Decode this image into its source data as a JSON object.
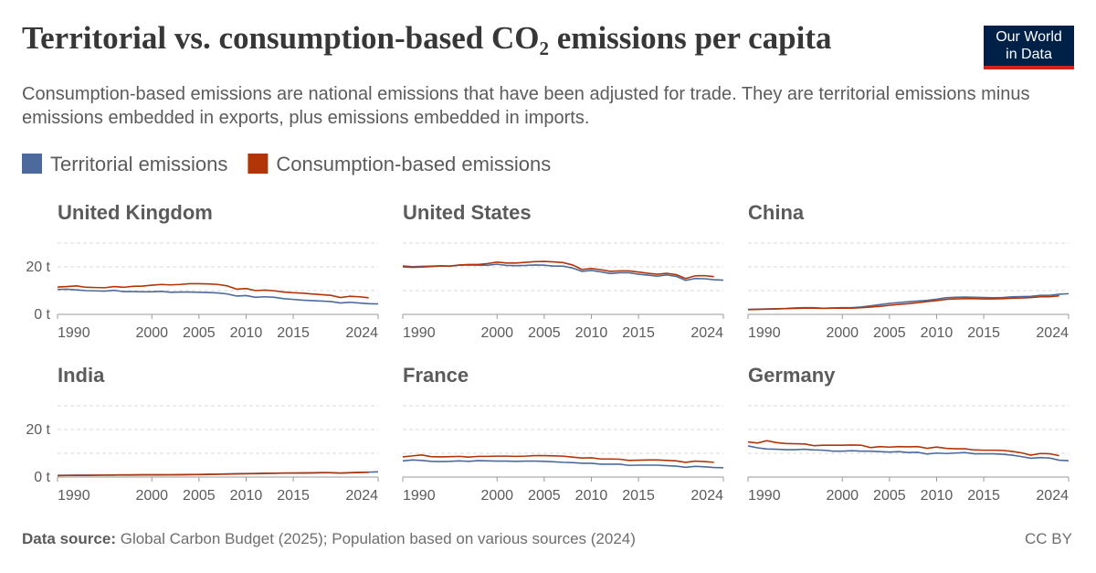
{
  "title": "Territorial vs. consumption-based CO₂ emissions per capita",
  "subtitle": "Consumption-based emissions are national emissions that have been adjusted for trade. They are territorial emissions minus emissions embedded in exports, plus emissions embedded in imports.",
  "logo": {
    "line1": "Our World",
    "line2": "in Data"
  },
  "source_label": "Data source:",
  "source": "Global Carbon Budget (2025); Population based on various sources (2024)",
  "license": "CC BY",
  "chart_data": [
    {
      "type": "line",
      "title": "United Kingdom",
      "x": [
        1990,
        1991,
        1992,
        1993,
        1994,
        1995,
        1996,
        1997,
        1998,
        1999,
        2000,
        2001,
        2002,
        2003,
        2004,
        2005,
        2006,
        2007,
        2008,
        2009,
        2010,
        2011,
        2012,
        2013,
        2014,
        2015,
        2016,
        2017,
        2018,
        2019,
        2020,
        2021,
        2022,
        2023,
        2024
      ],
      "xlim": [
        1990,
        2024
      ],
      "xticks": [
        1990,
        2000,
        2005,
        2010,
        2015,
        2024
      ],
      "ylim": [
        0,
        30
      ],
      "yticks": [
        {
          "value": 0,
          "label": "0 t"
        },
        {
          "value": 20,
          "label": "20 t"
        }
      ],
      "ygrid": [
        10,
        20,
        30
      ],
      "series": [
        {
          "name": "Territorial emissions",
          "color": "#4c6a9c",
          "values": [
            10.5,
            10.6,
            10.3,
            10.0,
            9.9,
            9.8,
            10.1,
            9.6,
            9.6,
            9.5,
            9.5,
            9.7,
            9.3,
            9.4,
            9.4,
            9.3,
            9.2,
            9.0,
            8.6,
            7.7,
            7.9,
            7.2,
            7.4,
            7.2,
            6.6,
            6.3,
            6.0,
            5.8,
            5.6,
            5.4,
            4.8,
            5.1,
            4.8,
            4.5,
            4.4
          ]
        },
        {
          "name": "Consumption-based emissions",
          "color": "#b13507",
          "values": [
            11.5,
            11.7,
            12.0,
            11.4,
            11.3,
            11.2,
            11.7,
            11.4,
            11.8,
            11.9,
            12.3,
            12.6,
            12.4,
            12.6,
            12.9,
            12.9,
            12.8,
            12.6,
            12.0,
            10.6,
            10.9,
            10.0,
            10.2,
            9.9,
            9.4,
            9.1,
            8.9,
            8.6,
            8.3,
            8.0,
            7.1,
            7.6,
            7.4,
            7.0,
            null
          ]
        }
      ]
    },
    {
      "type": "line",
      "title": "United States",
      "x": [
        1990,
        1991,
        1992,
        1993,
        1994,
        1995,
        1996,
        1997,
        1998,
        1999,
        2000,
        2001,
        2002,
        2003,
        2004,
        2005,
        2006,
        2007,
        2008,
        2009,
        2010,
        2011,
        2012,
        2013,
        2014,
        2015,
        2016,
        2017,
        2018,
        2019,
        2020,
        2021,
        2022,
        2023,
        2024
      ],
      "xlim": [
        1990,
        2024
      ],
      "xticks": [
        1990,
        2000,
        2005,
        2010,
        2015,
        2024
      ],
      "ylim": [
        0,
        30
      ],
      "ygrid": [
        10,
        20,
        30
      ],
      "series": [
        {
          "name": "Territorial emissions",
          "color": "#4c6a9c",
          "values": [
            20.4,
            20.1,
            20.2,
            20.3,
            20.4,
            20.3,
            20.7,
            20.8,
            20.7,
            20.7,
            21.1,
            20.6,
            20.5,
            20.6,
            20.8,
            20.7,
            20.3,
            20.3,
            19.5,
            18.1,
            18.5,
            17.9,
            17.2,
            17.5,
            17.5,
            16.9,
            16.5,
            16.1,
            16.6,
            16.0,
            14.3,
            15.1,
            15.0,
            14.6,
            14.4
          ]
        },
        {
          "name": "Consumption-based emissions",
          "color": "#b13507",
          "values": [
            20.0,
            19.8,
            19.9,
            20.1,
            20.4,
            20.3,
            20.8,
            21.0,
            21.0,
            21.4,
            22.0,
            21.6,
            21.6,
            21.9,
            22.2,
            22.3,
            22.1,
            21.8,
            20.8,
            18.9,
            19.3,
            18.8,
            18.1,
            18.3,
            18.3,
            17.8,
            17.3,
            16.9,
            17.3,
            16.7,
            15.1,
            16.2,
            16.3,
            15.9,
            null
          ]
        }
      ]
    },
    {
      "type": "line",
      "title": "China",
      "x": [
        1990,
        1991,
        1992,
        1993,
        1994,
        1995,
        1996,
        1997,
        1998,
        1999,
        2000,
        2001,
        2002,
        2003,
        2004,
        2005,
        2006,
        2007,
        2008,
        2009,
        2010,
        2011,
        2012,
        2013,
        2014,
        2015,
        2016,
        2017,
        2018,
        2019,
        2020,
        2021,
        2022,
        2023,
        2024
      ],
      "xlim": [
        1990,
        2024
      ],
      "xticks": [
        1990,
        2000,
        2005,
        2010,
        2015,
        2024
      ],
      "ylim": [
        0,
        30
      ],
      "ygrid": [
        10,
        20,
        30
      ],
      "series": [
        {
          "name": "Territorial emissions",
          "color": "#4c6a9c",
          "values": [
            2.1,
            2.2,
            2.3,
            2.4,
            2.5,
            2.7,
            2.8,
            2.8,
            2.6,
            2.7,
            2.8,
            2.8,
            3.1,
            3.6,
            4.1,
            4.6,
            5.0,
            5.3,
            5.6,
            5.9,
            6.4,
            7.0,
            7.2,
            7.3,
            7.2,
            7.1,
            7.0,
            7.1,
            7.4,
            7.5,
            7.6,
            8.0,
            8.0,
            8.5,
            8.7
          ]
        },
        {
          "name": "Consumption-based emissions",
          "color": "#b13507",
          "values": [
            2.0,
            2.1,
            2.2,
            2.3,
            2.4,
            2.5,
            2.6,
            2.6,
            2.5,
            2.6,
            2.6,
            2.6,
            2.8,
            3.1,
            3.4,
            3.8,
            4.2,
            4.5,
            4.9,
            5.4,
            5.8,
            6.3,
            6.5,
            6.6,
            6.6,
            6.5,
            6.5,
            6.6,
            6.8,
            6.9,
            7.1,
            7.4,
            7.4,
            7.8,
            null
          ]
        }
      ]
    },
    {
      "type": "line",
      "title": "India",
      "x": [
        1990,
        1991,
        1992,
        1993,
        1994,
        1995,
        1996,
        1997,
        1998,
        1999,
        2000,
        2001,
        2002,
        2003,
        2004,
        2005,
        2006,
        2007,
        2008,
        2009,
        2010,
        2011,
        2012,
        2013,
        2014,
        2015,
        2016,
        2017,
        2018,
        2019,
        2020,
        2021,
        2022,
        2023,
        2024
      ],
      "xlim": [
        1990,
        2024
      ],
      "xticks": [
        1990,
        2000,
        2005,
        2010,
        2015,
        2024
      ],
      "ylim": [
        0,
        30
      ],
      "yticks": [
        {
          "value": 0,
          "label": "0 t"
        },
        {
          "value": 20,
          "label": "20 t"
        }
      ],
      "ygrid": [
        10,
        20,
        30
      ],
      "series": [
        {
          "name": "Territorial emissions",
          "color": "#4c6a9c",
          "values": [
            0.7,
            0.75,
            0.78,
            0.79,
            0.82,
            0.86,
            0.89,
            0.92,
            0.93,
            0.97,
            0.98,
            0.98,
            0.99,
            1.02,
            1.07,
            1.1,
            1.16,
            1.23,
            1.31,
            1.41,
            1.45,
            1.51,
            1.6,
            1.63,
            1.72,
            1.73,
            1.75,
            1.8,
            1.88,
            1.87,
            1.72,
            1.87,
            1.98,
            2.07,
            2.2
          ]
        },
        {
          "name": "Consumption-based emissions",
          "color": "#b13507",
          "values": [
            0.62,
            0.67,
            0.7,
            0.71,
            0.74,
            0.78,
            0.81,
            0.84,
            0.85,
            0.89,
            0.9,
            0.9,
            0.91,
            0.94,
            0.99,
            1.02,
            1.08,
            1.15,
            1.23,
            1.33,
            1.37,
            1.43,
            1.52,
            1.55,
            1.64,
            1.65,
            1.67,
            1.72,
            1.8,
            1.79,
            1.64,
            1.79,
            1.9,
            1.99,
            null
          ]
        }
      ]
    },
    {
      "type": "line",
      "title": "France",
      "x": [
        1990,
        1991,
        1992,
        1993,
        1994,
        1995,
        1996,
        1997,
        1998,
        1999,
        2000,
        2001,
        2002,
        2003,
        2004,
        2005,
        2006,
        2007,
        2008,
        2009,
        2010,
        2011,
        2012,
        2013,
        2014,
        2015,
        2016,
        2017,
        2018,
        2019,
        2020,
        2021,
        2022,
        2023,
        2024
      ],
      "xlim": [
        1990,
        2024
      ],
      "xticks": [
        1990,
        2000,
        2005,
        2010,
        2015,
        2024
      ],
      "ylim": [
        0,
        30
      ],
      "ygrid": [
        10,
        20,
        30
      ],
      "series": [
        {
          "name": "Territorial emissions",
          "color": "#4c6a9c",
          "values": [
            6.8,
            7.2,
            7.0,
            6.6,
            6.5,
            6.6,
            6.8,
            6.6,
            6.9,
            6.8,
            6.7,
            6.7,
            6.6,
            6.7,
            6.7,
            6.6,
            6.4,
            6.2,
            6.1,
            5.8,
            5.8,
            5.4,
            5.4,
            5.4,
            4.9,
            5.0,
            5.0,
            5.0,
            4.8,
            4.6,
            4.1,
            4.5,
            4.3,
            4.0,
            3.9
          ]
        },
        {
          "name": "Consumption-based emissions",
          "color": "#b13507",
          "values": [
            8.5,
            8.9,
            9.3,
            8.6,
            8.5,
            8.6,
            8.7,
            8.4,
            8.7,
            8.7,
            8.8,
            8.8,
            8.7,
            8.8,
            9.0,
            9.0,
            8.9,
            8.8,
            8.4,
            8.0,
            8.1,
            7.6,
            7.6,
            7.5,
            7.0,
            7.1,
            7.2,
            7.2,
            7.0,
            6.8,
            6.2,
            6.7,
            6.5,
            6.2,
            null
          ]
        }
      ]
    },
    {
      "type": "line",
      "title": "Germany",
      "x": [
        1990,
        1991,
        1992,
        1993,
        1994,
        1995,
        1996,
        1997,
        1998,
        1999,
        2000,
        2001,
        2002,
        2003,
        2004,
        2005,
        2006,
        2007,
        2008,
        2009,
        2010,
        2011,
        2012,
        2013,
        2014,
        2015,
        2016,
        2017,
        2018,
        2019,
        2020,
        2021,
        2022,
        2023,
        2024
      ],
      "xlim": [
        1990,
        2024
      ],
      "xticks": [
        1990,
        2000,
        2005,
        2010,
        2015,
        2024
      ],
      "ylim": [
        0,
        30
      ],
      "ygrid": [
        10,
        20,
        30
      ],
      "series": [
        {
          "name": "Territorial emissions",
          "color": "#4c6a9c",
          "values": [
            13.1,
            12.3,
            11.8,
            11.7,
            11.5,
            11.5,
            11.7,
            11.4,
            11.3,
            10.9,
            10.9,
            11.1,
            10.9,
            10.9,
            10.7,
            10.5,
            10.7,
            10.3,
            10.4,
            9.7,
            10.1,
            9.9,
            10.1,
            10.3,
            9.8,
            9.8,
            9.8,
            9.6,
            9.2,
            8.6,
            7.9,
            8.2,
            8.0,
            7.1,
            6.9
          ]
        },
        {
          "name": "Consumption-based emissions",
          "color": "#b13507",
          "values": [
            14.8,
            14.3,
            15.3,
            14.5,
            14.1,
            14.0,
            13.9,
            13.2,
            13.4,
            13.4,
            13.4,
            13.5,
            13.4,
            12.4,
            12.8,
            12.6,
            12.8,
            12.7,
            12.8,
            12.1,
            12.6,
            12.1,
            11.9,
            11.9,
            11.4,
            11.3,
            11.3,
            11.2,
            10.8,
            10.2,
            9.2,
            9.9,
            9.8,
            9.0,
            null
          ]
        }
      ]
    }
  ]
}
